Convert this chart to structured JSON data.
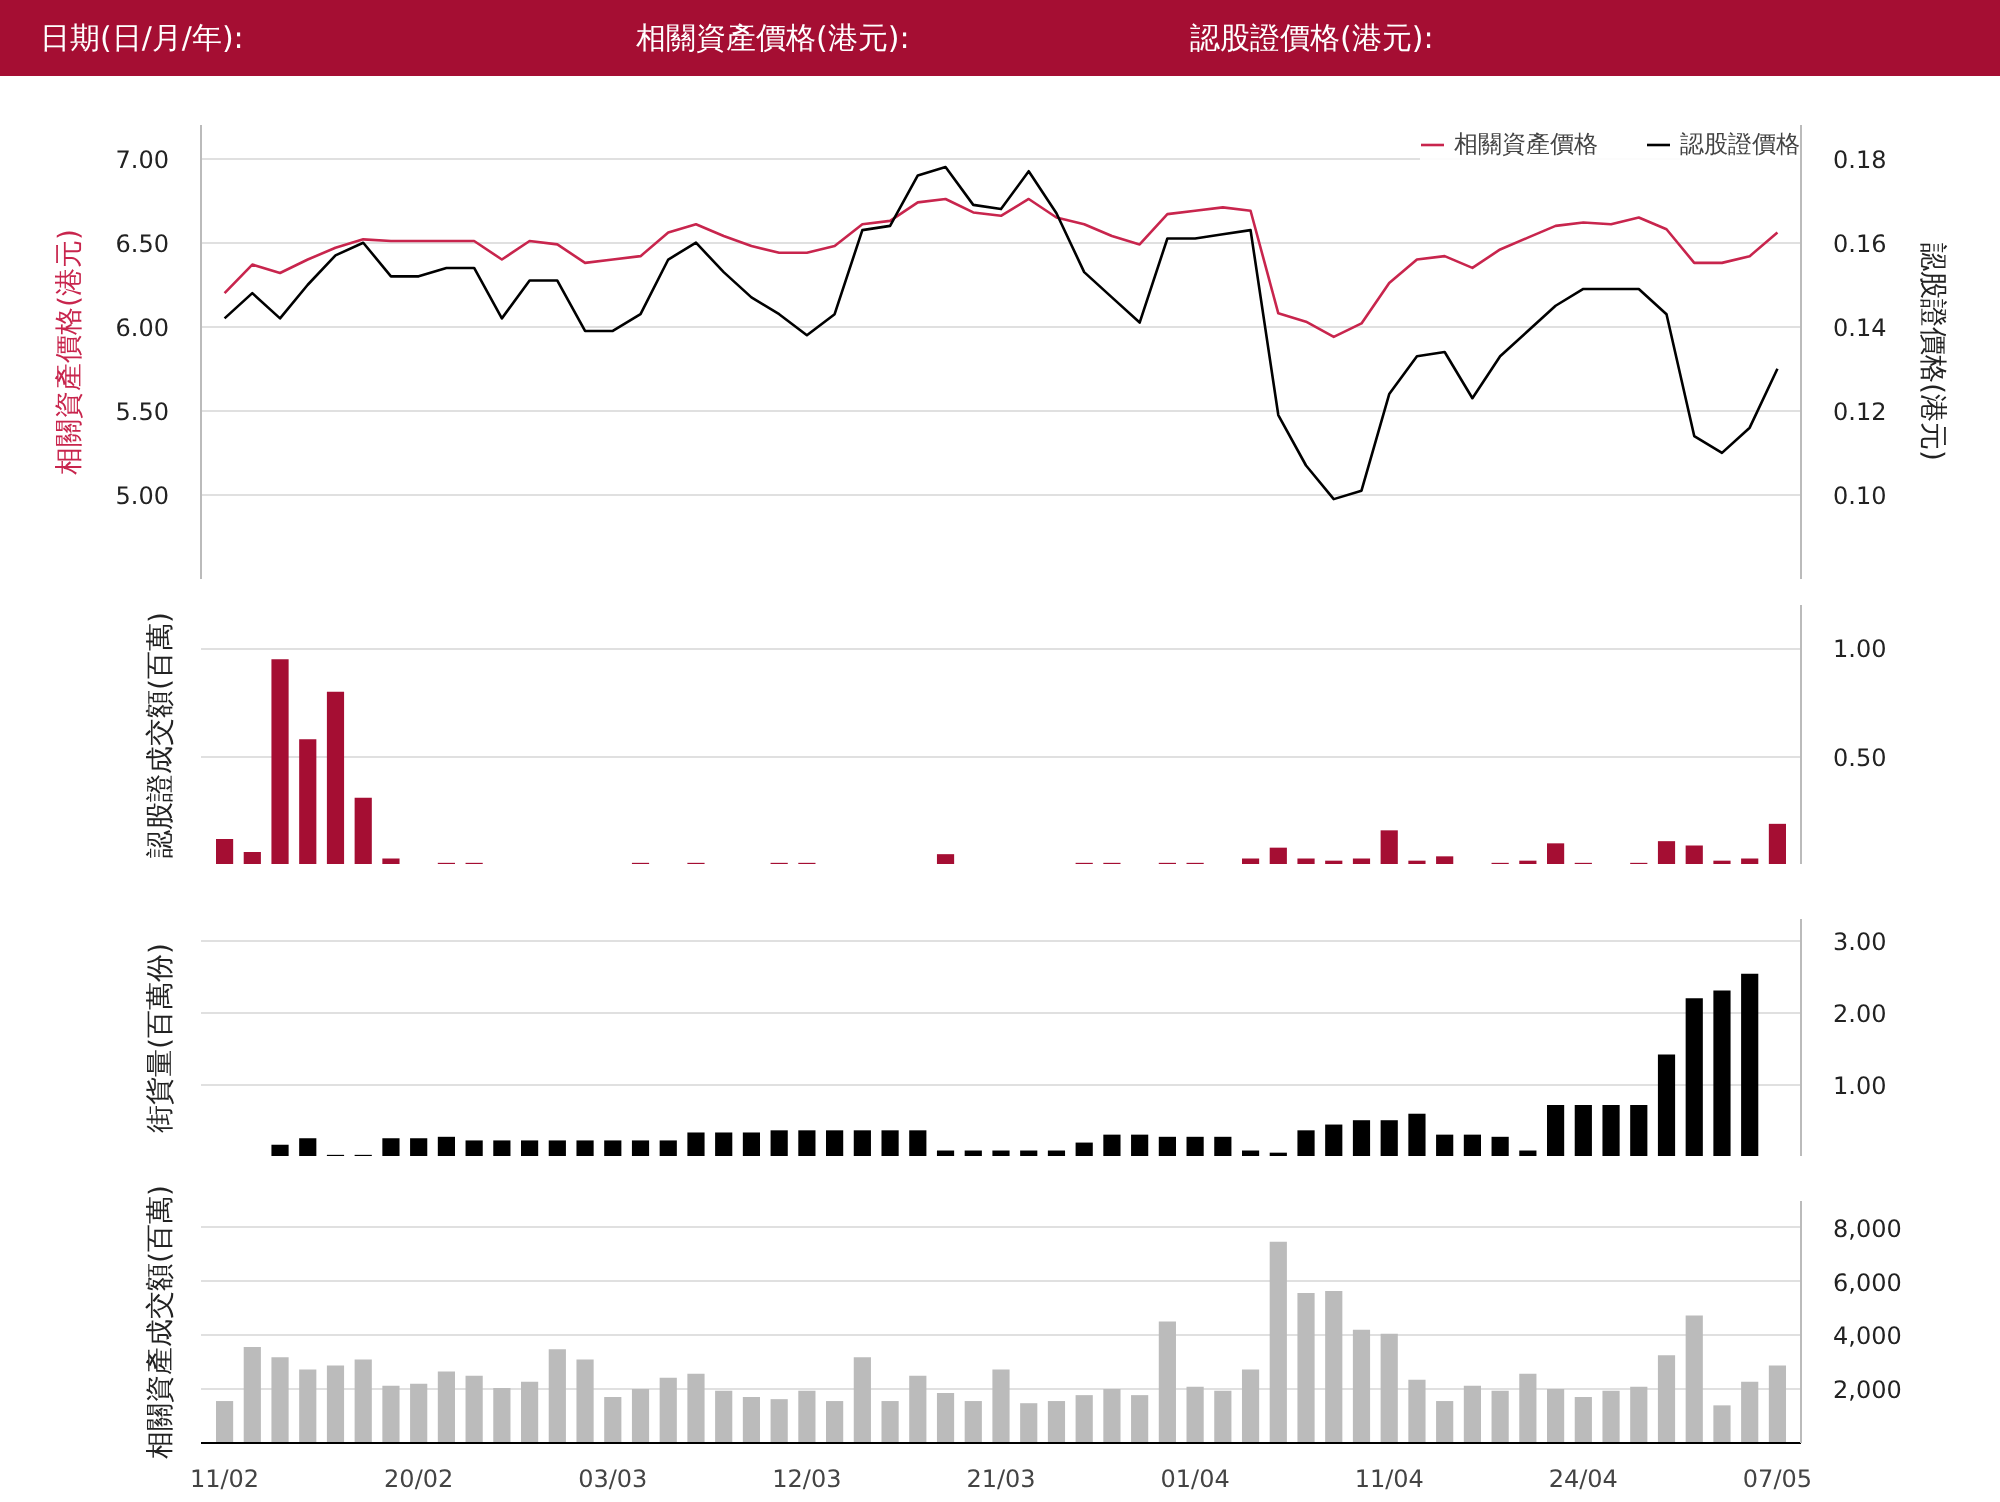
{
  "chart_data": [
    {
      "type": "line",
      "annotations": [
        "日期(日/月/年):",
        "相關資產價格(港元):",
        "認股證價格(港元):"
      ],
      "categories": [
        null,
        null,
        null,
        null,
        null,
        null,
        null,
        null,
        null,
        null,
        null,
        null,
        null,
        null,
        null,
        null,
        null,
        null,
        null,
        null,
        null,
        null,
        null,
        null,
        null,
        null,
        null,
        null,
        null,
        null,
        null,
        null,
        null,
        null,
        null,
        null,
        null,
        null,
        null,
        null,
        null,
        null,
        null,
        null,
        null,
        null,
        null,
        null,
        null,
        null,
        null,
        null,
        null,
        null,
        null,
        null,
        null
      ],
      "series": [
        {
          "name": "相關資產價格",
          "color": "#c8254d",
          "values": [
            6.2,
            6.37,
            6.32,
            6.4,
            6.47,
            6.52,
            6.51,
            6.51,
            6.51,
            6.51,
            6.4,
            6.51,
            6.49,
            6.38,
            6.4,
            6.42,
            6.56,
            6.61,
            6.54,
            6.48,
            6.44,
            6.44,
            6.48,
            6.61,
            6.63,
            6.74,
            6.76,
            6.68,
            6.66,
            6.76,
            6.65,
            6.61,
            6.54,
            6.49,
            6.67,
            6.69,
            6.71,
            6.69,
            6.08,
            6.03,
            5.94,
            6.02,
            6.26,
            6.4,
            6.42,
            6.35,
            6.46,
            6.53,
            6.6,
            6.62,
            6.61,
            6.65,
            6.58,
            6.38,
            6.38,
            6.42,
            6.56
          ]
        },
        {
          "name": "認股證價格",
          "color": "#000000",
          "axis": "y2",
          "values": [
            0.142,
            0.148,
            0.142,
            0.15,
            0.157,
            0.16,
            0.152,
            0.152,
            0.154,
            0.154,
            0.142,
            0.151,
            0.151,
            0.139,
            0.139,
            0.143,
            0.156,
            0.16,
            0.153,
            0.147,
            0.143,
            0.138,
            0.143,
            0.163,
            0.164,
            0.176,
            0.178,
            0.169,
            0.168,
            0.177,
            0.167,
            0.153,
            0.147,
            0.141,
            0.161,
            0.161,
            0.162,
            0.163,
            0.119,
            0.107,
            0.099,
            0.101,
            0.124,
            0.133,
            0.134,
            0.123,
            0.133,
            0.139,
            0.145,
            0.149,
            0.149,
            0.149,
            0.143,
            0.114,
            0.11,
            0.116,
            0.13
          ]
        }
      ],
      "ylim": [
        4.5,
        7.2
      ],
      "yticks": [
        {
          "value": 5,
          "label": "5.00"
        },
        {
          "value": 5.5,
          "label": "5.50"
        },
        {
          "value": 6,
          "label": "6.00"
        },
        {
          "value": 6.5,
          "label": "6.50"
        },
        {
          "value": 7,
          "label": "7.00"
        }
      ],
      "y2lim": [
        0.08,
        0.188
      ],
      "y2ticks": [
        {
          "value": 0.1,
          "label": "0.10"
        },
        {
          "value": 0.12,
          "label": "0.12"
        },
        {
          "value": 0.14,
          "label": "0.14"
        },
        {
          "value": 0.16,
          "label": "0.16"
        },
        {
          "value": 0.18,
          "label": "0.18"
        }
      ],
      "ylabel": "相關資產價格(港元)",
      "y2label": "認股證價格(港元)",
      "grid": "y",
      "legend": "top right",
      "tick_labels": "y"
    },
    {
      "type": "bar",
      "color": "#a50e33",
      "categories": [
        null,
        null,
        null,
        null,
        null,
        null,
        null,
        null,
        null,
        null,
        null,
        null,
        null,
        null,
        null,
        null,
        null,
        null,
        null,
        null,
        null,
        null,
        null,
        null,
        null,
        null,
        null,
        null,
        null,
        null,
        null,
        null,
        null,
        null,
        null,
        null,
        null,
        null,
        null,
        null,
        null,
        null,
        null,
        null,
        null,
        null,
        null,
        null,
        null,
        null,
        null,
        null,
        null,
        null,
        null,
        null,
        null
      ],
      "values": [
        0.12,
        0.06,
        0.95,
        0.58,
        0.8,
        0.31,
        0.03,
        0,
        0.01,
        0.01,
        0,
        0,
        0,
        0,
        0,
        0.01,
        0,
        0.01,
        0,
        0,
        0.01,
        0.01,
        0,
        0,
        0,
        0,
        0.05,
        0,
        0,
        0,
        0,
        0.01,
        0.01,
        0,
        0.01,
        0.01,
        0,
        0.03,
        0.08,
        0.03,
        0.02,
        0.03,
        0.16,
        0.02,
        0.04,
        0,
        0.01,
        0.02,
        0.1,
        0.01,
        0,
        0.01,
        0.11,
        0.09,
        0.02,
        0.03,
        0.19
      ],
      "ylim": [
        0,
        1.2
      ],
      "yticks": [
        {
          "value": 0.5,
          "label": "0.50"
        },
        {
          "value": 1,
          "label": "1.00"
        }
      ],
      "ylabel": "認股證成交額(百萬)",
      "grid": "y",
      "tick_labels": "y"
    },
    {
      "type": "bar",
      "color": "#000000",
      "categories": [
        null,
        null,
        null,
        null,
        null,
        null,
        null,
        null,
        null,
        null,
        null,
        null,
        null,
        null,
        null,
        null,
        null,
        null,
        null,
        null,
        null,
        null,
        null,
        null,
        null,
        null,
        null,
        null,
        null,
        null,
        null,
        null,
        null,
        null,
        null,
        null,
        null,
        null,
        null,
        null,
        null,
        null,
        null,
        null,
        null,
        null,
        null,
        null,
        null,
        null,
        null,
        null,
        null,
        null,
        null,
        null,
        null
      ],
      "values": [
        null,
        null,
        0.17,
        0.26,
        0.03,
        0.03,
        0.26,
        0.26,
        0.28,
        0.23,
        0.23,
        0.23,
        0.23,
        0.23,
        0.23,
        0.23,
        0.23,
        0.34,
        0.34,
        0.34,
        0.37,
        0.37,
        0.37,
        0.37,
        0.37,
        0.37,
        0.09,
        0.09,
        0.09,
        0.09,
        0.09,
        0.2,
        0.31,
        0.31,
        0.28,
        0.28,
        0.28,
        0.09,
        0.06,
        0.37,
        0.45,
        0.51,
        0.51,
        0.6,
        0.31,
        0.31,
        0.28,
        0.09,
        0.72,
        0.72,
        0.72,
        0.72,
        1.42,
        2.2,
        2.31,
        2.54,
        null
      ],
      "ylim": [
        0,
        3.3
      ],
      "yticks": [
        {
          "value": 1,
          "label": "1.00"
        },
        {
          "value": 2,
          "label": "2.00"
        },
        {
          "value": 3,
          "label": "3.00"
        }
      ],
      "ylabel": "街貨量(百萬份)",
      "grid": "y",
      "tick_labels": "y"
    },
    {
      "type": "bar",
      "color": "#bbbbbb",
      "categories": [
        "11/02",
        null,
        null,
        null,
        null,
        null,
        null,
        "20/02",
        null,
        null,
        null,
        null,
        null,
        null,
        "03/03",
        null,
        null,
        null,
        null,
        null,
        null,
        "12/03",
        null,
        null,
        null,
        null,
        null,
        null,
        "21/03",
        null,
        null,
        null,
        null,
        null,
        null,
        "01/04",
        null,
        null,
        null,
        null,
        null,
        null,
        "11/04",
        null,
        null,
        null,
        null,
        null,
        null,
        "24/04",
        null,
        null,
        null,
        null,
        null,
        null,
        "07/05"
      ],
      "values": [
        1560,
        3570,
        3190,
        2730,
        2880,
        3110,
        2130,
        2200,
        2660,
        2500,
        2050,
        2280,
        3490,
        3110,
        1710,
        2010,
        2430,
        2580,
        1940,
        1710,
        1630,
        1940,
        1560,
        3190,
        1560,
        2500,
        1860,
        1560,
        2730,
        1480,
        1560,
        1780,
        2010,
        1780,
        4520,
        2090,
        1940,
        2730,
        7480,
        5580,
        5650,
        4210,
        4060,
        2350,
        1560,
        2130,
        1940,
        2580,
        2010,
        1710,
        1940,
        2090,
        3260,
        4740,
        1400,
        2280,
        2880
      ],
      "ylim": [
        0,
        9000
      ],
      "yticks": [
        {
          "value": 2000,
          "label": "2,000"
        },
        {
          "value": 4000,
          "label": "4,000"
        },
        {
          "value": 6000,
          "label": "6,000"
        },
        {
          "value": 8000,
          "label": "8,000"
        }
      ],
      "ylabel": "相關資產成交額(百萬)",
      "grid": "y"
    }
  ]
}
